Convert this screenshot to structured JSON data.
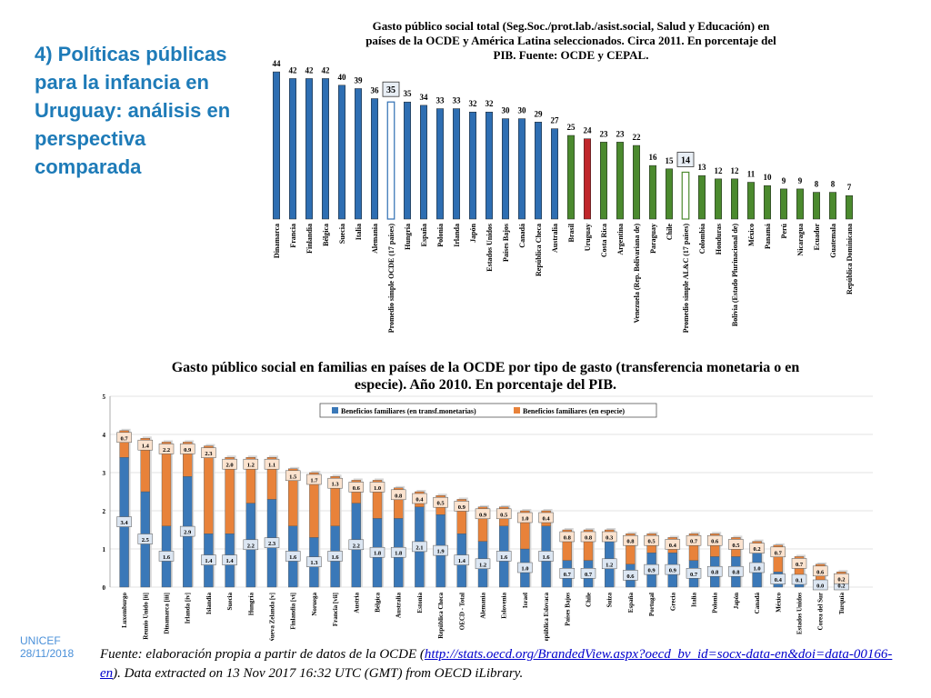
{
  "slide": {
    "title": "4) Políticas públicas para la infancia en Uruguay: análisis en perspectiva comparada",
    "footer_org": "UNICEF",
    "footer_date": "28/11/2018",
    "source_before": "Fuente: elaboración propia a partir de datos de la OCDE (",
    "source_link": "http://stats.oecd.org/BrandedView.aspx?oecd_bv_id=socx-data-en&doi=data-00166-en",
    "source_after": "). Data extracted on 13 Nov 2017 16:32 UTC (GMT) from OECD iLibrary."
  },
  "chart_data": [
    {
      "type": "bar",
      "title_lines": [
        "Gasto público social total (Seg.Soc./prot.lab./asist.social, Salud y Educación) en",
        "países de la OCDE y América Latina seleccionados. Circa 2011. En porcentaje del",
        "PIB. Fuente: OCDE y CEPAL."
      ],
      "categories": [
        "Dinamarca",
        "Francia",
        "Finlandia",
        "Bélgica",
        "Suecia",
        "Italia",
        "Alemania",
        "Promedio simple OCDE (17 países)",
        "Hungría",
        "España",
        "Polonia",
        "Irlanda",
        "Japón",
        "Estados Unidos",
        "Países Bajos",
        "Canadá",
        "República Checa",
        "Australia",
        "Brasil",
        "Uruguay",
        "Costa Rica",
        "Argentina",
        "Venezuela (Rep. Bolivariana de)",
        "Paraguay",
        "Chile",
        "Promedio simple AL&C (17 países)",
        "Colombia",
        "Honduras",
        "Bolivia (Estado Plurinacional de)",
        "México",
        "Panamá",
        "Perú",
        "Nicaragua",
        "Ecuador",
        "Guatemala",
        "República Dominicana"
      ],
      "values": [
        44,
        42,
        42,
        42,
        40,
        39,
        36,
        35,
        35,
        34,
        33,
        33,
        32,
        32,
        30,
        30,
        29,
        27,
        25,
        24,
        23,
        23,
        22,
        16,
        15,
        14,
        13,
        12,
        12,
        11,
        10,
        9,
        9,
        8,
        8,
        7
      ],
      "groups": [
        "OCDE",
        "OCDE",
        "OCDE",
        "OCDE",
        "OCDE",
        "OCDE",
        "OCDE",
        "OCDE-avg",
        "OCDE",
        "OCDE",
        "OCDE",
        "OCDE",
        "OCDE",
        "OCDE",
        "OCDE",
        "OCDE",
        "OCDE",
        "OCDE",
        "AL",
        "UY",
        "AL",
        "AL",
        "AL",
        "AL",
        "AL",
        "AL-avg",
        "AL",
        "AL",
        "AL",
        "AL",
        "AL",
        "AL",
        "AL",
        "AL",
        "AL",
        "AL"
      ],
      "ylim": [
        0,
        45
      ],
      "colors": {
        "OCDE": "#2e6eb2",
        "AL": "#4b8a2e",
        "UY": "#c0262b",
        "avg_fill": "#ffffff"
      }
    },
    {
      "type": "stacked_bar",
      "title_lines": [
        "Gasto público social en familias en países de la OCDE por tipo de gasto (transferencia monetaria o en",
        "especie). Año 2010. En porcentaje del PIB."
      ],
      "categories": [
        "Luxemburgo",
        "Reunio Unido [ii]",
        "Dinamarca [iii]",
        "Irlanda [iv]",
        "Islandia",
        "Suecia",
        "Hungría",
        "Nueva Zelanda [v]",
        "Finlandia [vi]",
        "Noruega",
        "Francia [vii]",
        "Austria",
        "Bélgica",
        "Australia",
        "Estonia",
        "República Checa",
        "OECD - Total",
        "Alemania",
        "Eslovenia",
        "Israel",
        "República Eslovaca",
        "Países Bajos",
        "Chile",
        "Suiza",
        "España",
        "Portugal",
        "Grecia",
        "Italia",
        "Polonia",
        "Japón",
        "Canadá",
        "México",
        "Estados Unidos",
        "Corea del Sur",
        "Turquía"
      ],
      "series": [
        {
          "name": "Beneficios familiares (en transf.monetarias)",
          "color": "#3a78b8",
          "values": [
            3.4,
            2.5,
            1.6,
            2.9,
            1.4,
            1.4,
            2.2,
            2.3,
            1.6,
            1.3,
            1.6,
            2.2,
            1.8,
            1.8,
            2.1,
            1.9,
            1.4,
            1.2,
            1.6,
            1.0,
            1.6,
            0.7,
            0.7,
            1.2,
            0.6,
            0.9,
            0.9,
            0.7,
            0.8,
            0.8,
            1.0,
            0.4,
            0.1,
            0.0,
            0.2
          ]
        },
        {
          "name": "Beneficios familiares (en especie)",
          "color": "#e8823a",
          "values": [
            0.7,
            1.4,
            2.2,
            0.9,
            2.3,
            2.0,
            1.2,
            1.1,
            1.5,
            1.7,
            1.3,
            0.6,
            1.0,
            0.8,
            0.4,
            0.5,
            0.9,
            0.9,
            0.5,
            1.0,
            0.4,
            0.8,
            0.8,
            0.3,
            0.8,
            0.5,
            0.4,
            0.7,
            0.6,
            0.5,
            0.2,
            0.7,
            0.7,
            0.6,
            0.2
          ]
        }
      ],
      "yticks": [
        "0",
        "1",
        "2",
        "3",
        "4",
        "5"
      ],
      "ylim": [
        0,
        5
      ]
    }
  ]
}
